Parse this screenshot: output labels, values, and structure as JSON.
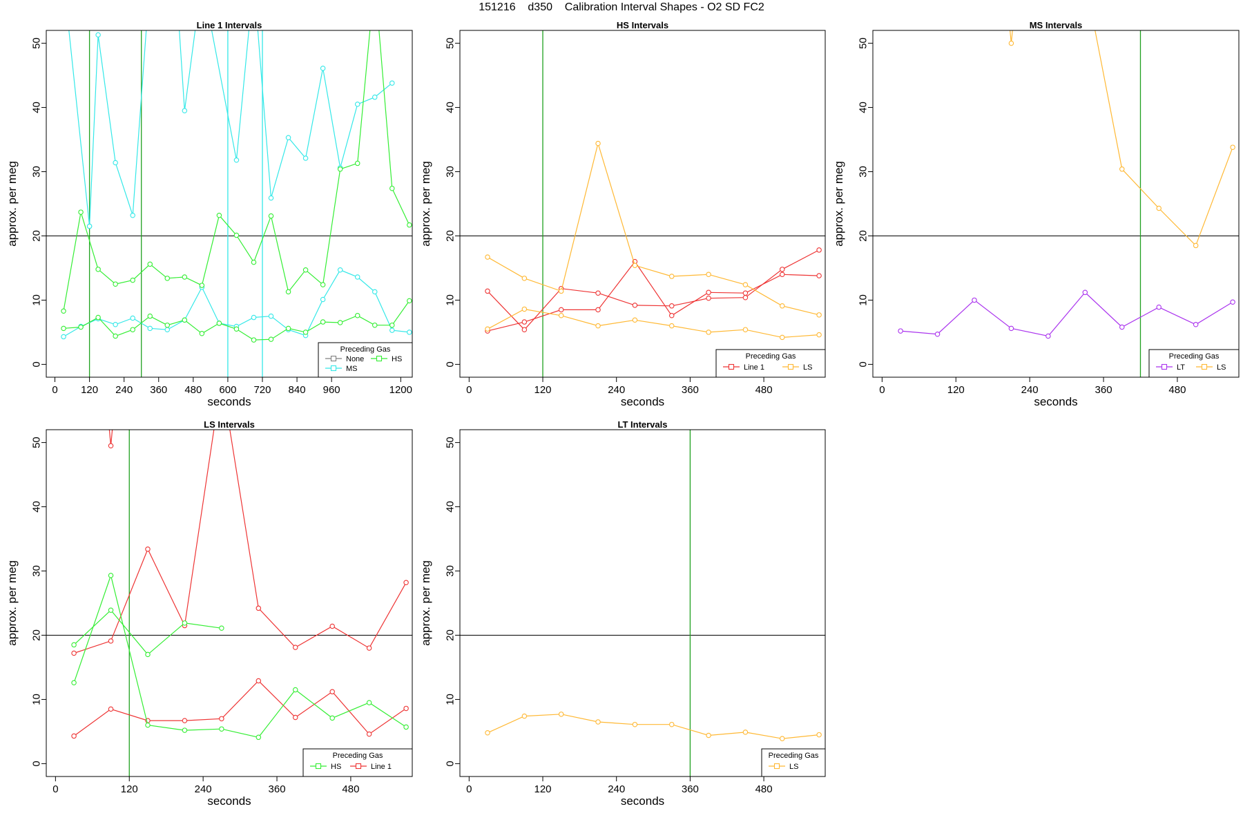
{
  "page_title": "151216    d350    Calibration Interval Shapes - O2 SD FC2",
  "legend_title": "Preceding Gas",
  "colors": {
    "None": "#808080",
    "HS": "#33ee33",
    "MS": "#33e8e8",
    "Line 1": "#ee3333",
    "LS": "#ffb833",
    "LT": "#aa33ee",
    "vline": "#006400",
    "hline": "#000000"
  },
  "chart_data": [
    {
      "type": "line",
      "title": "Line 1 Intervals",
      "xlabel": "seconds",
      "ylabel": "approx. per meg",
      "xlim": [
        -30,
        1240
      ],
      "ylim": [
        -2,
        52
      ],
      "xticks": [
        0,
        120,
        240,
        360,
        480,
        600,
        720,
        840,
        960,
        1200
      ],
      "yticks": [
        0,
        10,
        20,
        30,
        40,
        50
      ],
      "hline": 20,
      "vlines": [
        {
          "x": 120,
          "color": "#1fa01f"
        },
        {
          "x": 300,
          "color": "#1fa01f"
        },
        {
          "x": 600,
          "color": "#33e8e8"
        },
        {
          "x": 720,
          "color": "#33e8e8"
        }
      ],
      "legend": {
        "entries": [
          "None",
          "HS",
          "MS"
        ],
        "layout": "two-column",
        "position": "bottom-right"
      },
      "series": [
        {
          "name": "MS",
          "x": [
            30,
            120
          ],
          "y": [
            60,
            21.5
          ]
        },
        {
          "name": "MS",
          "x": [
            120,
            150,
            210,
            270,
            330,
            420,
            450,
            510,
            630,
            690,
            750,
            810,
            870,
            930,
            990,
            1050,
            1110,
            1170
          ],
          "y": [
            21.5,
            51.3,
            31.4,
            23.2,
            60,
            60,
            39.5,
            60,
            31.8,
            60,
            25.9,
            35.3,
            32.1,
            46.1,
            30.6,
            40.5,
            41.6,
            43.8
          ]
        },
        {
          "name": "MS",
          "x": [
            30,
            90,
            150,
            210,
            270,
            330,
            390,
            450,
            510,
            570,
            630,
            690,
            750,
            810,
            870,
            930,
            990,
            1050,
            1110,
            1170,
            1230
          ],
          "y": [
            4.3,
            5.9,
            7.1,
            6.2,
            7.2,
            5.6,
            5.4,
            6.9,
            12.0,
            6.4,
            5.9,
            7.3,
            7.5,
            5.4,
            4.5,
            10.1,
            14.7,
            13.6,
            11.3,
            5.3,
            5.0
          ]
        },
        {
          "name": "HS",
          "x": [
            30,
            90,
            150,
            210,
            270,
            330,
            390,
            450,
            510,
            570,
            630,
            690,
            750,
            810,
            870,
            930,
            990,
            1050,
            1110,
            1170,
            1230
          ],
          "y": [
            8.3,
            23.7,
            14.8,
            12.5,
            13.1,
            15.6,
            13.4,
            13.6,
            12.3,
            23.2,
            20.1,
            15.9,
            23.1,
            11.3,
            14.7,
            12.4,
            30.4,
            31.3,
            60,
            27.4,
            21.7
          ]
        },
        {
          "name": "HS",
          "x": [
            30,
            90,
            150,
            210,
            270,
            330,
            390,
            450,
            510,
            570,
            630,
            690,
            750,
            810,
            870,
            930,
            990,
            1050,
            1110,
            1170,
            1230
          ],
          "y": [
            5.6,
            5.8,
            7.3,
            4.4,
            5.4,
            7.5,
            6.1,
            6.9,
            4.8,
            6.4,
            5.5,
            3.8,
            3.9,
            5.6,
            5.0,
            6.6,
            6.5,
            7.6,
            6.1,
            6.1,
            9.9
          ]
        }
      ]
    },
    {
      "type": "line",
      "title": "HS Intervals",
      "xlabel": "seconds",
      "ylabel": "approx. per meg",
      "xlim": [
        -15,
        580
      ],
      "ylim": [
        -2,
        52
      ],
      "xticks": [
        0,
        120,
        240,
        360,
        480
      ],
      "yticks": [
        0,
        10,
        20,
        30,
        40,
        50
      ],
      "hline": 20,
      "vlines": [
        {
          "x": 120,
          "color": "#1fa01f"
        }
      ],
      "legend": {
        "entries": [
          "Line 1",
          "LS"
        ],
        "layout": "one-row",
        "position": "bottom-right"
      },
      "series": [
        {
          "name": "Line 1",
          "x": [
            30,
            90,
            150,
            210,
            270,
            330,
            390,
            450,
            510,
            570
          ],
          "y": [
            11.4,
            5.4,
            11.8,
            11.1,
            9.2,
            9.1,
            10.3,
            10.4,
            14.8,
            17.8
          ]
        },
        {
          "name": "Line 1",
          "x": [
            30,
            90,
            150,
            210,
            270,
            330,
            390,
            450,
            510,
            570
          ],
          "y": [
            5.2,
            6.6,
            8.5,
            8.5,
            16.0,
            7.6,
            11.2,
            11.1,
            14.0,
            13.8
          ]
        },
        {
          "name": "LS",
          "x": [
            30,
            90,
            150,
            210,
            270,
            330,
            390,
            450,
            510,
            570
          ],
          "y": [
            16.7,
            13.4,
            11.4,
            34.4,
            15.4,
            13.7,
            14.0,
            12.4,
            9.1,
            7.7
          ]
        },
        {
          "name": "LS",
          "x": [
            30,
            90,
            150,
            210,
            270,
            330,
            390,
            450,
            510,
            570
          ],
          "y": [
            5.5,
            8.6,
            7.6,
            6.0,
            6.9,
            6.0,
            5.0,
            5.4,
            4.2,
            4.6
          ]
        }
      ]
    },
    {
      "type": "line",
      "title": "MS Intervals",
      "xlabel": "seconds",
      "ylabel": "approx. per meg",
      "xlim": [
        -15,
        580
      ],
      "ylim": [
        -2,
        52
      ],
      "xticks": [
        0,
        120,
        240,
        360,
        480
      ],
      "yticks": [
        0,
        10,
        20,
        30,
        40,
        50
      ],
      "hline": 20,
      "vlines": [
        {
          "x": 420,
          "color": "#1fa01f"
        }
      ],
      "legend": {
        "entries": [
          "LT",
          "LS"
        ],
        "layout": "one-row",
        "position": "bottom-right"
      },
      "series": [
        {
          "name": "LT",
          "x": [
            30,
            90,
            150,
            210,
            270,
            330,
            390,
            450,
            510,
            570
          ],
          "y": [
            5.2,
            4.7,
            10.0,
            5.6,
            4.4,
            11.2,
            5.8,
            8.9,
            6.2,
            9.7
          ]
        },
        {
          "name": "LS",
          "x": [
            200,
            210,
            220
          ],
          "y": [
            60,
            50.0,
            60
          ]
        },
        {
          "name": "LS",
          "x": [
            330,
            390,
            450,
            510,
            570
          ],
          "y": [
            60,
            30.4,
            24.3,
            18.5,
            33.8
          ]
        }
      ]
    },
    {
      "type": "line",
      "title": "LS Intervals",
      "xlabel": "seconds",
      "ylabel": "approx. per meg",
      "xlim": [
        -15,
        580
      ],
      "ylim": [
        -2,
        52
      ],
      "xticks": [
        0,
        120,
        240,
        360,
        480
      ],
      "yticks": [
        0,
        10,
        20,
        30,
        40,
        50
      ],
      "hline": 20,
      "vlines": [
        {
          "x": 120,
          "color": "#1fa01f"
        }
      ],
      "legend": {
        "entries": [
          "HS",
          "Line 1"
        ],
        "layout": "one-row",
        "position": "bottom-right"
      },
      "series": [
        {
          "name": "Line 1",
          "x": [
            80,
            90,
            100
          ],
          "y": [
            60,
            49.5,
            60
          ]
        },
        {
          "name": "Line 1",
          "x": [
            30,
            90,
            150,
            210,
            270,
            330,
            390,
            450,
            510,
            570
          ],
          "y": [
            17.2,
            19.1,
            33.4,
            21.5,
            60,
            24.2,
            18.1,
            21.4,
            18.0,
            28.2
          ]
        },
        {
          "name": "Line 1",
          "x": [
            30,
            90,
            150,
            210,
            270,
            330,
            390,
            450,
            510,
            570
          ],
          "y": [
            4.3,
            8.5,
            6.7,
            6.7,
            7.0,
            12.9,
            7.2,
            11.2,
            4.6,
            8.6
          ]
        },
        {
          "name": "HS",
          "x": [
            30,
            90,
            150,
            210,
            270
          ],
          "y": [
            18.5,
            23.9,
            17.0,
            21.9,
            21.1
          ]
        },
        {
          "name": "HS",
          "x": [
            30,
            90,
            150,
            210,
            270,
            330,
            390,
            450,
            510,
            570
          ],
          "y": [
            12.6,
            29.3,
            6.0,
            5.2,
            5.4,
            4.1,
            11.5,
            7.1,
            9.5,
            5.7
          ]
        }
      ]
    },
    {
      "type": "line",
      "title": "LT Intervals",
      "xlabel": "seconds",
      "ylabel": "approx. per meg",
      "xlim": [
        -15,
        580
      ],
      "ylim": [
        -2,
        52
      ],
      "xticks": [
        0,
        120,
        240,
        360,
        480
      ],
      "yticks": [
        0,
        10,
        20,
        30,
        40,
        50
      ],
      "hline": 20,
      "vlines": [
        {
          "x": 360,
          "color": "#1fa01f"
        }
      ],
      "legend": {
        "entries": [
          "LS"
        ],
        "layout": "one-row",
        "position": "bottom-right"
      },
      "series": [
        {
          "name": "LS",
          "x": [
            30,
            90,
            150,
            210,
            270,
            330,
            390,
            450,
            510,
            570
          ],
          "y": [
            4.8,
            7.4,
            7.7,
            6.5,
            6.1,
            6.1,
            4.4,
            4.9,
            3.9,
            4.5
          ]
        }
      ]
    }
  ]
}
